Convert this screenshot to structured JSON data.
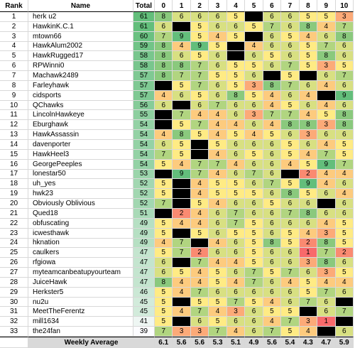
{
  "table": {
    "headers": [
      "Rank",
      "Name",
      "Total",
      "0",
      "1",
      "2",
      "3",
      "4",
      "5",
      "6",
      "7",
      "8",
      "9",
      "10"
    ],
    "rows": [
      {
        "rank": 1,
        "name": "herk u2",
        "total": 61,
        "scores": [
          8,
          6,
          6,
          6,
          5,
          null,
          6,
          6,
          5,
          5,
          3
        ]
      },
      {
        "rank": 2,
        "name": "HawkinK.C.1",
        "total": 61,
        "scores": [
          6,
          null,
          5,
          6,
          6,
          5,
          7,
          6,
          8,
          4,
          7
        ]
      },
      {
        "rank": 3,
        "name": "mtown66",
        "total": 60,
        "scores": [
          7,
          9,
          5,
          4,
          5,
          null,
          6,
          5,
          4,
          6,
          8
        ]
      },
      {
        "rank": 4,
        "name": "HawkAlum2002",
        "total": 59,
        "scores": [
          8,
          4,
          9,
          5,
          null,
          4,
          6,
          6,
          5,
          7,
          6
        ]
      },
      {
        "rank": 5,
        "name": "HawkRugged17",
        "total": 58,
        "scores": [
          8,
          6,
          5,
          6,
          null,
          6,
          5,
          6,
          5,
          8,
          6
        ]
      },
      {
        "rank": 6,
        "name": "RPWinni0",
        "total": 58,
        "scores": [
          8,
          8,
          7,
          6,
          5,
          5,
          6,
          7,
          5,
          3,
          5
        ]
      },
      {
        "rank": 7,
        "name": "Machawk2489",
        "total": 57,
        "scores": [
          8,
          7,
          7,
          5,
          5,
          6,
          null,
          5,
          null,
          6,
          7
        ]
      },
      {
        "rank": 8,
        "name": "Farleyhawk",
        "total": 57,
        "scores": [
          null,
          5,
          7,
          6,
          5,
          3,
          8,
          7,
          6,
          4,
          6
        ]
      },
      {
        "rank": 9,
        "name": "cidsports",
        "total": 57,
        "scores": [
          4,
          6,
          5,
          6,
          8,
          5,
          4,
          6,
          4,
          null,
          9
        ]
      },
      {
        "rank": 10,
        "name": "QChawks",
        "total": 56,
        "scores": [
          6,
          null,
          6,
          7,
          6,
          6,
          4,
          5,
          6,
          4,
          6
        ]
      },
      {
        "rank": 11,
        "name": "LincolnHawkeye",
        "total": 55,
        "scores": [
          null,
          7,
          4,
          4,
          6,
          3,
          7,
          7,
          4,
          5,
          8
        ]
      },
      {
        "rank": 12,
        "name": "Eburghawk",
        "total": 54,
        "scores": [
          null,
          5,
          7,
          4,
          4,
          6,
          4,
          8,
          8,
          3,
          8
        ]
      },
      {
        "rank": 13,
        "name": "HawkAssassin",
        "total": 54,
        "scores": [
          4,
          8,
          5,
          4,
          5,
          4,
          5,
          6,
          3,
          6,
          6
        ]
      },
      {
        "rank": 14,
        "name": "davenporter",
        "total": 54,
        "scores": [
          6,
          5,
          null,
          5,
          6,
          6,
          6,
          5,
          6,
          4,
          5
        ]
      },
      {
        "rank": 15,
        "name": "HawkHeel3",
        "total": 54,
        "scores": [
          7,
          5,
          null,
          4,
          6,
          5,
          6,
          5,
          4,
          7,
          5
        ]
      },
      {
        "rank": 16,
        "name": "GeorgePeeples",
        "total": 54,
        "scores": [
          5,
          4,
          7,
          7,
          4,
          6,
          6,
          4,
          5,
          9,
          7
        ]
      },
      {
        "rank": 17,
        "name": "lonestar50",
        "total": 53,
        "scores": [
          null,
          9,
          7,
          4,
          6,
          7,
          6,
          null,
          2,
          4,
          4
        ]
      },
      {
        "rank": 18,
        "name": "uh_yes",
        "total": 52,
        "scores": [
          5,
          null,
          4,
          5,
          5,
          6,
          7,
          5,
          9,
          4,
          6
        ]
      },
      {
        "rank": 19,
        "name": "hwk23",
        "total": 52,
        "scores": [
          5,
          null,
          4,
          5,
          5,
          5,
          6,
          8,
          5,
          6,
          4
        ]
      },
      {
        "rank": 20,
        "name": "Obviously Oblivious",
        "total": 52,
        "scores": [
          7,
          null,
          5,
          4,
          6,
          6,
          5,
          6,
          6,
          null,
          6
        ]
      },
      {
        "rank": 21,
        "name": "Qued18",
        "total": 51,
        "scores": [
          null,
          2,
          4,
          6,
          7,
          6,
          6,
          7,
          8,
          6,
          6
        ]
      },
      {
        "rank": 22,
        "name": "obfuscating",
        "total": 49,
        "scores": [
          5,
          4,
          4,
          6,
          7,
          5,
          6,
          6,
          6,
          4,
          5
        ]
      },
      {
        "rank": 23,
        "name": "icwesthawk",
        "total": 49,
        "scores": [
          5,
          null,
          5,
          6,
          5,
          5,
          6,
          5,
          4,
          3,
          5
        ]
      },
      {
        "rank": 24,
        "name": "hknation",
        "total": 49,
        "scores": [
          4,
          7,
          null,
          4,
          6,
          5,
          8,
          5,
          2,
          8,
          5
        ]
      },
      {
        "rank": 25,
        "name": "caulkers",
        "total": 47,
        "scores": [
          5,
          7,
          2,
          6,
          6,
          5,
          6,
          6,
          1,
          7,
          2
        ]
      },
      {
        "rank": 26,
        "name": "rfgiowa",
        "total": 47,
        "scores": [
          6,
          null,
          7,
          4,
          4,
          5,
          6,
          6,
          3,
          8,
          6
        ]
      },
      {
        "rank": 27,
        "name": "myteamcanbeatupyourteam",
        "total": 47,
        "scores": [
          6,
          5,
          4,
          5,
          6,
          7,
          5,
          7,
          6,
          3,
          5
        ]
      },
      {
        "rank": 28,
        "name": "JuiceHawk",
        "total": 47,
        "scores": [
          8,
          4,
          4,
          5,
          4,
          7,
          6,
          4,
          5,
          4,
          4
        ]
      },
      {
        "rank": 29,
        "name": "Herkster5",
        "total": 46,
        "scores": [
          5,
          4,
          7,
          6,
          6,
          6,
          6,
          6,
          5,
          7,
          6
        ]
      },
      {
        "rank": 30,
        "name": "nu2u",
        "total": 45,
        "scores": [
          5,
          null,
          5,
          5,
          7,
          5,
          4,
          6,
          7,
          6,
          null
        ]
      },
      {
        "rank": 31,
        "name": "MeetTheFerentz",
        "total": 45,
        "scores": [
          5,
          4,
          7,
          4,
          3,
          6,
          5,
          5,
          null,
          6,
          7
        ]
      },
      {
        "rank": 32,
        "name": "mill1634",
        "total": 41,
        "scores": [
          5,
          null,
          6,
          5,
          6,
          6,
          4,
          7,
          3,
          1,
          null
        ]
      },
      {
        "rank": 33,
        "name": "the24fan",
        "total": 39,
        "scores": [
          7,
          3,
          3,
          7,
          4,
          6,
          7,
          5,
          4,
          null,
          6
        ]
      }
    ],
    "footer": {
      "label": "Weekly Average",
      "averages": [
        6.1,
        5.6,
        5.6,
        5.3,
        5.1,
        4.9,
        5.6,
        5.4,
        4.3,
        4.7,
        5.9
      ]
    }
  }
}
